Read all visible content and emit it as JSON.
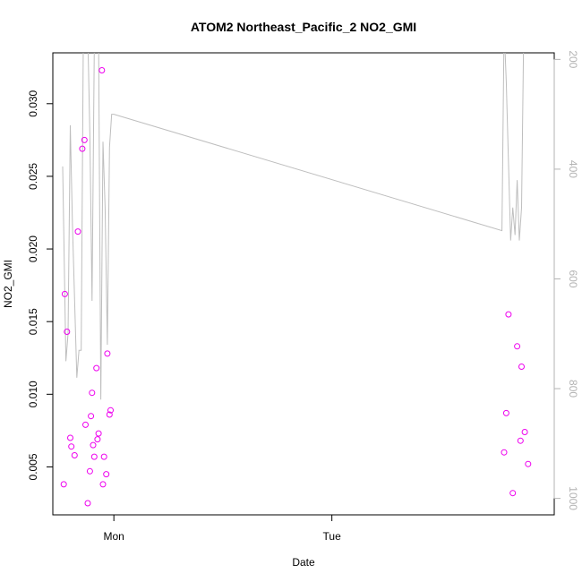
{
  "chart_data": {
    "type": "scatter",
    "title": "ATOM2 Northeast_Pacific_2 NO2_GMI",
    "xlabel": "Date",
    "ylabel": "NO2_GMI",
    "ylim": [
      0.0017,
      0.0335
    ],
    "y_ticks": [
      0.005,
      0.01,
      0.015,
      0.02,
      0.025,
      0.03
    ],
    "y_tick_labels": [
      "0.005",
      "0.010",
      "0.015",
      "0.020",
      "0.025",
      "0.030"
    ],
    "x_unit": "days since Sunday 00:00",
    "xlim": [
      0.72,
      3.02
    ],
    "x_ticks": [
      1,
      2
    ],
    "x_tick_labels": [
      "Mon",
      "Tue"
    ],
    "y2lim": [
      1030,
      188
    ],
    "y2_ticks": [
      200,
      400,
      600,
      800,
      1000
    ],
    "y2_tick_labels": [
      "200",
      "400",
      "600",
      "800",
      "1000"
    ],
    "grid": false,
    "colors": {
      "points": "#ee00ee",
      "pressure_line": "#bebebe",
      "right_axis": "#b3b3b3",
      "axis": "#000000"
    },
    "series": [
      {
        "kind": "points",
        "axis": "left",
        "x": [
          0.77,
          0.775,
          0.785,
          0.8,
          0.805,
          0.82,
          0.835,
          0.855,
          0.865,
          0.87,
          0.88,
          0.89,
          0.895,
          0.9,
          0.905,
          0.91,
          0.92,
          0.925,
          0.93,
          0.945,
          0.95,
          0.955,
          0.965,
          0.97,
          0.98,
          0.985,
          2.79,
          2.8,
          2.81,
          2.83,
          2.85,
          2.865,
          2.87,
          2.885,
          2.9
        ],
        "y": [
          0.0038,
          0.0169,
          0.0143,
          0.007,
          0.0064,
          0.0058,
          0.0212,
          0.0269,
          0.0275,
          0.0079,
          0.0025,
          0.0047,
          0.0085,
          0.0101,
          0.0065,
          0.0057,
          0.0118,
          0.0069,
          0.0073,
          0.0323,
          0.0038,
          0.0057,
          0.0045,
          0.0128,
          0.0086,
          0.0089,
          0.006,
          0.0087,
          0.0155,
          0.0032,
          0.0133,
          0.0068,
          0.0119,
          0.0074,
          0.0052
        ]
      },
      {
        "kind": "line",
        "axis": "right",
        "x": [
          0.765,
          0.78,
          0.79,
          0.8,
          0.81,
          0.83,
          0.84,
          0.85,
          0.86,
          0.87,
          0.88,
          0.89,
          0.9,
          0.91,
          0.92,
          0.93,
          0.94,
          0.95,
          0.96,
          0.97,
          0.98,
          0.99,
          1.0,
          2.78,
          2.79,
          2.8,
          2.82,
          2.83,
          2.84,
          2.85,
          2.86,
          2.87,
          2.88,
          2.9
        ],
        "y": [
          395,
          750,
          700,
          320,
          500,
          780,
          730,
          730,
          150,
          150,
          150,
          340,
          640,
          180,
          150,
          160,
          820,
          350,
          470,
          720,
          360,
          300,
          300,
          512,
          140,
          240,
          530,
          470,
          520,
          420,
          530,
          470,
          150,
          150
        ]
      }
    ]
  }
}
